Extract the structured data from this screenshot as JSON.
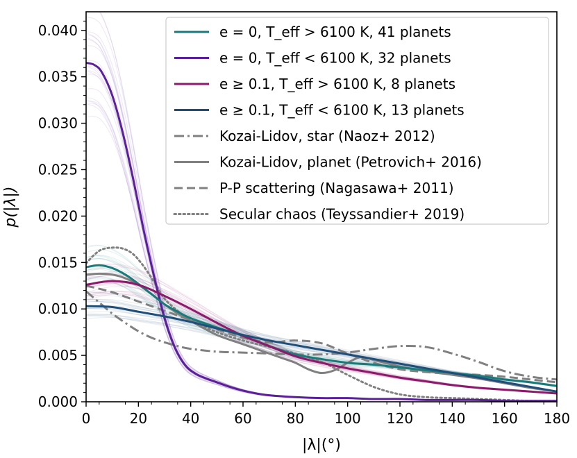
{
  "chart_data": {
    "type": "line",
    "xlabel": "|λ|(°)",
    "ylabel": "p(|λ|)",
    "xlim": [
      0,
      180
    ],
    "ylim": [
      0,
      0.042
    ],
    "xticks": [
      0,
      20,
      40,
      60,
      80,
      100,
      120,
      140,
      160,
      180
    ],
    "xtick_labels": [
      "0",
      "20",
      "40",
      "60",
      "80",
      "100",
      "120",
      "140",
      "160",
      "180"
    ],
    "yticks": [
      0,
      0.005,
      0.01,
      0.015,
      0.02,
      0.025,
      0.03,
      0.035,
      0.04
    ],
    "ytick_labels": [
      "0.000",
      "0.005",
      "0.010",
      "0.015",
      "0.020",
      "0.025",
      "0.030",
      "0.035",
      "0.040"
    ],
    "grid": false,
    "legend_position": "top-right",
    "legend": [
      {
        "text": "e = 0, T_eff > 6100 K, 41 planets",
        "color": "#1a7a7a",
        "style": "solid"
      },
      {
        "text": "e = 0, T_eff < 6100 K, 32 planets",
        "color": "#5b1f9a",
        "style": "solid"
      },
      {
        "text": "e ≥ 0.1, T_eff > 6100 K, 8 planets",
        "color": "#8c1a6a",
        "style": "solid"
      },
      {
        "text": "e ≥ 0.1, T_eff < 6100 K, 13 planets",
        "color": "#1f4e79",
        "style": "solid"
      },
      {
        "text": "Kozai-Lidov, star (Naoz+ 2012)",
        "color": "#808080",
        "style": "dashdot"
      },
      {
        "text": "Kozai-Lidov, planet (Petrovich+ 2016)",
        "color": "#808080",
        "style": "solid"
      },
      {
        "text": "P-P scattering (Nagasawa+ 2011)",
        "color": "#808080",
        "style": "dashed"
      },
      {
        "text": "Secular chaos (Teyssandier+ 2019)",
        "color": "#808080",
        "style": "dotted"
      }
    ],
    "series": [
      {
        "name": "e = 0, T_eff > 6100 K, 41 planets",
        "color": "#1a7a7a",
        "style": "solid",
        "x": [
          0,
          5,
          10,
          15,
          20,
          25,
          30,
          35,
          40,
          50,
          60,
          70,
          80,
          90,
          100,
          110,
          120,
          130,
          140,
          150,
          160,
          170,
          180
        ],
        "y": [
          0.0145,
          0.0147,
          0.0144,
          0.0137,
          0.0127,
          0.0116,
          0.0105,
          0.0097,
          0.009,
          0.008,
          0.0071,
          0.006,
          0.0051,
          0.0046,
          0.0042,
          0.004,
          0.0037,
          0.0034,
          0.0031,
          0.0028,
          0.0024,
          0.0021,
          0.0017
        ]
      },
      {
        "name": "e = 0, T_eff < 6100 K, 32 planets",
        "color": "#5b1f9a",
        "style": "solid",
        "x": [
          0,
          3,
          6,
          10,
          14,
          18,
          22,
          26,
          30,
          34,
          38,
          42,
          46,
          50,
          55,
          60,
          65,
          70,
          80,
          90,
          100,
          110,
          120,
          130,
          140,
          150,
          160,
          170,
          180
        ],
        "y": [
          0.0365,
          0.0363,
          0.0355,
          0.033,
          0.029,
          0.024,
          0.0185,
          0.0135,
          0.009,
          0.0058,
          0.0039,
          0.003,
          0.0025,
          0.0021,
          0.0016,
          0.0012,
          0.0009,
          0.0007,
          0.0005,
          0.0004,
          0.0004,
          0.0003,
          0.0003,
          0.0002,
          0.0002,
          0.0002,
          0.0001,
          0.0001,
          0.0001
        ]
      },
      {
        "name": "e ≥ 0.1, T_eff > 6100 K, 8 planets",
        "color": "#8c1a6a",
        "style": "solid",
        "x": [
          0,
          10,
          20,
          30,
          40,
          50,
          60,
          70,
          80,
          90,
          100,
          110,
          120,
          130,
          140,
          150,
          160,
          170,
          180
        ],
        "y": [
          0.0126,
          0.013,
          0.0126,
          0.0114,
          0.01,
          0.0085,
          0.0071,
          0.006,
          0.0049,
          0.0042,
          0.0036,
          0.0031,
          0.0026,
          0.0022,
          0.0018,
          0.0015,
          0.0013,
          0.0011,
          0.0009
        ]
      },
      {
        "name": "e ≥ 0.1, T_eff < 6100 K, 13 planets",
        "color": "#1f4e79",
        "style": "solid",
        "x": [
          0,
          10,
          20,
          30,
          40,
          50,
          60,
          70,
          80,
          90,
          100,
          110,
          120,
          130,
          140,
          150,
          160,
          170,
          180
        ],
        "y": [
          0.0103,
          0.0102,
          0.0097,
          0.0092,
          0.0086,
          0.0079,
          0.0072,
          0.0066,
          0.0061,
          0.0056,
          0.0051,
          0.0046,
          0.0041,
          0.0036,
          0.0031,
          0.0026,
          0.0021,
          0.0016,
          0.0011
        ]
      },
      {
        "name": "Kozai-Lidov, star (Naoz+ 2012)",
        "color": "#808080",
        "style": "dashdot",
        "x": [
          0,
          5,
          10,
          15,
          20,
          25,
          30,
          35,
          40,
          50,
          60,
          70,
          80,
          90,
          100,
          110,
          120,
          130,
          140,
          150,
          160,
          170,
          180
        ],
        "y": [
          0.0119,
          0.0107,
          0.0095,
          0.0085,
          0.0076,
          0.0069,
          0.0064,
          0.006,
          0.0057,
          0.0054,
          0.0053,
          0.0052,
          0.0051,
          0.0051,
          0.0053,
          0.0057,
          0.006,
          0.0059,
          0.0052,
          0.0043,
          0.0033,
          0.0027,
          0.0024
        ]
      },
      {
        "name": "Kozai-Lidov, planet (Petrovich+ 2016)",
        "color": "#808080",
        "style": "solid",
        "x": [
          0,
          5,
          10,
          15,
          20,
          25,
          30,
          35,
          40,
          50,
          60,
          70,
          75,
          80,
          85,
          90,
          95,
          100,
          105,
          110,
          120,
          130,
          140,
          150,
          160,
          170,
          180
        ],
        "y": [
          0.0137,
          0.0138,
          0.0137,
          0.0133,
          0.0126,
          0.0116,
          0.0105,
          0.0095,
          0.0087,
          0.0072,
          0.0062,
          0.0052,
          0.0047,
          0.0042,
          0.0035,
          0.0031,
          0.0034,
          0.0042,
          0.0048,
          0.0045,
          0.0038,
          0.0033,
          0.0029,
          0.0025,
          0.002,
          0.0015,
          0.0011
        ]
      },
      {
        "name": "P-P scattering (Nagasawa+ 2011)",
        "color": "#808080",
        "style": "dashed",
        "x": [
          0,
          10,
          20,
          30,
          40,
          50,
          60,
          70,
          80,
          90,
          100,
          110,
          120,
          130,
          140,
          150,
          160,
          170,
          180
        ],
        "y": [
          0.0125,
          0.0118,
          0.0108,
          0.0098,
          0.0088,
          0.0078,
          0.0069,
          0.0064,
          0.0066,
          0.0063,
          0.0052,
          0.0042,
          0.0035,
          0.0032,
          0.003,
          0.0029,
          0.0027,
          0.0024,
          0.0021
        ]
      },
      {
        "name": "Secular chaos (Teyssandier+ 2019)",
        "color": "#808080",
        "style": "dotted",
        "x": [
          0,
          3,
          6,
          10,
          14,
          18,
          22,
          26,
          30,
          35,
          40,
          50,
          60,
          70,
          80,
          90,
          100,
          110,
          120,
          130,
          140,
          150,
          160,
          170,
          180
        ],
        "y": [
          0.0149,
          0.0158,
          0.0164,
          0.0166,
          0.0165,
          0.0159,
          0.0146,
          0.0129,
          0.0111,
          0.0098,
          0.0088,
          0.0075,
          0.0066,
          0.0059,
          0.0052,
          0.0043,
          0.0029,
          0.0016,
          0.0008,
          0.0005,
          0.0004,
          0.0003,
          0.0002,
          0.0001,
          0.0001
        ]
      }
    ]
  }
}
